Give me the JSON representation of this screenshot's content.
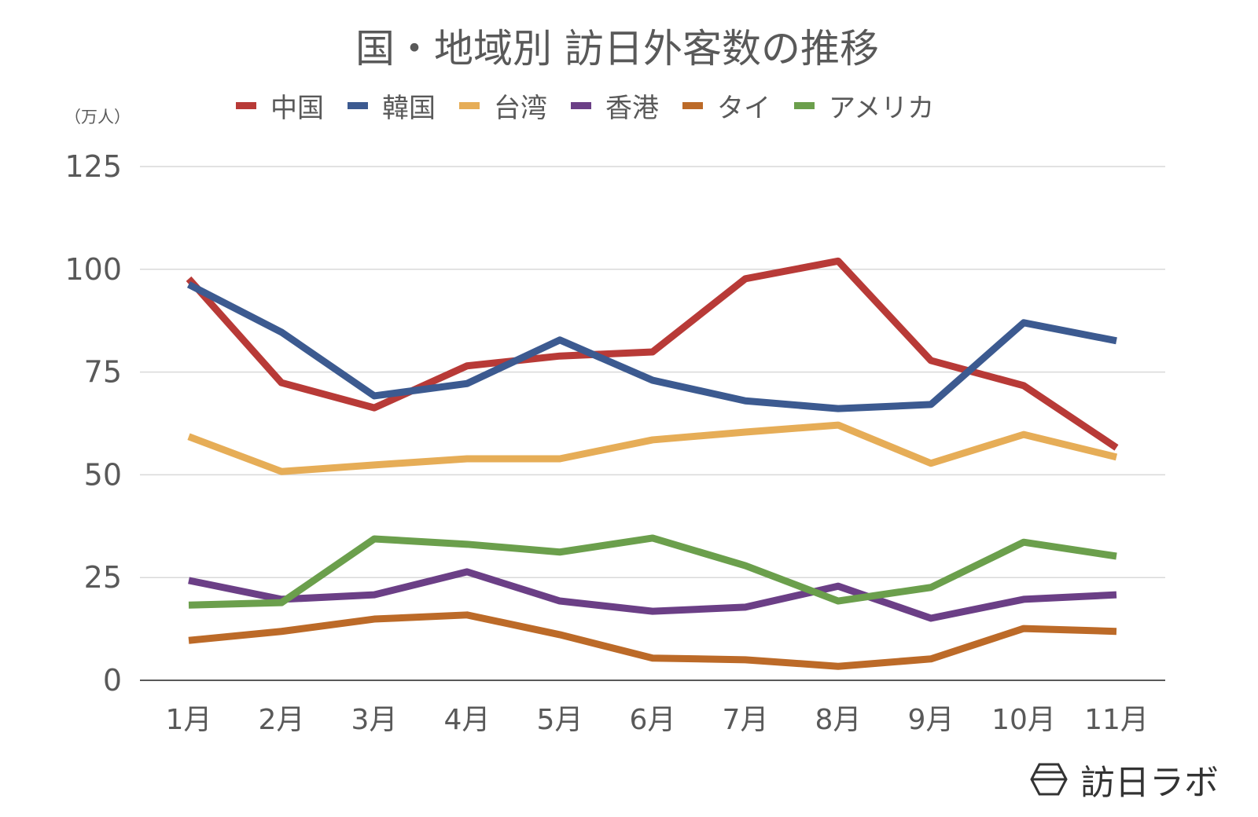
{
  "chart_data": {
    "type": "line",
    "title": "国・地域別 訪日外客数の推移",
    "ylabel": "（万人）",
    "xlabel": "",
    "categories": [
      "1月",
      "2月",
      "3月",
      "4月",
      "5月",
      "6月",
      "7月",
      "8月",
      "9月",
      "10月",
      "11月"
    ],
    "ylim": [
      0,
      125
    ],
    "yticks": [
      0,
      25,
      50,
      75,
      100,
      125
    ],
    "grid": true,
    "legend": "top",
    "series": [
      {
        "name": "中国",
        "color": "#b83a37",
        "values": [
          97.7,
          72.4,
          66.3,
          76.5,
          78.9,
          79.9,
          97.7,
          102.0,
          77.8,
          71.7,
          56.6
        ]
      },
      {
        "name": "韓国",
        "color": "#3c5a90",
        "values": [
          96.3,
          84.7,
          69.2,
          72.2,
          82.8,
          73.0,
          68.0,
          66.1,
          67.1,
          87.0,
          82.6
        ]
      },
      {
        "name": "台湾",
        "color": "#e6ad57",
        "values": [
          59.3,
          50.8,
          52.4,
          53.9,
          53.9,
          58.5,
          60.4,
          62.1,
          52.8,
          59.8,
          54.3
        ]
      },
      {
        "name": "香港",
        "color": "#6b3f86",
        "values": [
          24.3,
          19.7,
          20.8,
          26.4,
          19.3,
          16.8,
          17.8,
          22.9,
          15.1,
          19.7,
          20.8
        ]
      },
      {
        "name": "タイ",
        "color": "#bc6a28",
        "values": [
          9.7,
          11.9,
          14.9,
          15.9,
          11.1,
          5.4,
          5.0,
          3.4,
          5.2,
          12.6,
          11.9
        ]
      },
      {
        "name": "アメリカ",
        "color": "#6b9f4c",
        "values": [
          18.3,
          18.9,
          34.4,
          33.1,
          31.2,
          34.6,
          27.9,
          19.3,
          22.6,
          33.6,
          30.2
        ]
      }
    ]
  },
  "logo": {
    "text": "訪日ラボ"
  }
}
